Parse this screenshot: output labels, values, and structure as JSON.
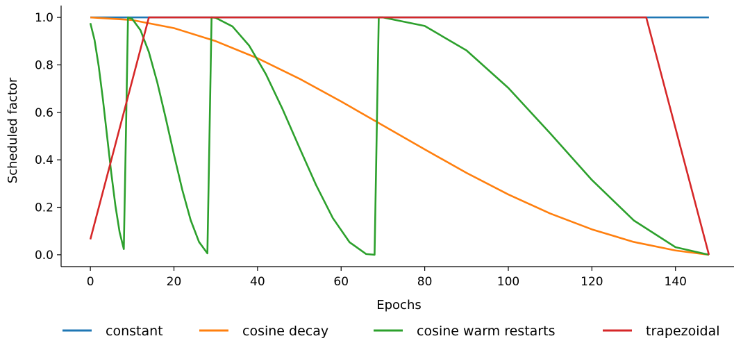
{
  "chart_data": {
    "type": "line",
    "title": "",
    "xlabel": "Epochs",
    "ylabel": "Scheduled factor",
    "xlim": [
      -7,
      154
    ],
    "ylim": [
      -0.05,
      1.05
    ],
    "xticks": [
      0,
      20,
      40,
      60,
      80,
      100,
      120,
      140
    ],
    "yticks": [
      0.0,
      0.2,
      0.4,
      0.6,
      0.8,
      1.0
    ],
    "xtick_labels": [
      "0",
      "20",
      "40",
      "60",
      "80",
      "100",
      "120",
      "140"
    ],
    "ytick_labels": [
      "0.0",
      "0.2",
      "0.4",
      "0.6",
      "0.8",
      "1.0"
    ],
    "grid": false,
    "legend_position": "bottom",
    "series": [
      {
        "name": "constant",
        "color": "#1f77b4",
        "x": [
          0,
          148
        ],
        "y": [
          1.0,
          1.0
        ]
      },
      {
        "name": "cosine decay",
        "color": "#ff7f0e",
        "x": [
          0,
          10,
          20,
          30,
          40,
          50,
          60,
          70,
          80,
          90,
          100,
          110,
          120,
          130,
          140,
          148
        ],
        "y": [
          1.0,
          0.989,
          0.955,
          0.9,
          0.828,
          0.742,
          0.646,
          0.545,
          0.444,
          0.345,
          0.254,
          0.174,
          0.107,
          0.054,
          0.018,
          0.0
        ]
      },
      {
        "name": "cosine warm restarts",
        "color": "#2ca02c",
        "x": [
          0,
          1,
          2,
          3,
          4,
          5,
          6,
          7,
          8,
          8.5,
          9,
          10,
          12,
          14,
          16,
          18,
          20,
          22,
          24,
          26,
          28,
          28.5,
          29,
          30,
          34,
          38,
          42,
          46,
          50,
          54,
          58,
          62,
          66,
          68,
          68.5,
          69,
          70,
          80,
          90,
          100,
          110,
          120,
          130,
          140,
          148
        ],
        "y": [
          0.976,
          0.905,
          0.794,
          0.655,
          0.5,
          0.345,
          0.206,
          0.095,
          0.024,
          0.5,
          1.0,
          0.994,
          0.946,
          0.854,
          0.727,
          0.578,
          0.422,
          0.273,
          0.146,
          0.054,
          0.006,
          0.5,
          1.0,
          0.998,
          0.962,
          0.881,
          0.761,
          0.613,
          0.452,
          0.294,
          0.155,
          0.053,
          0.003,
          0.0,
          0.5,
          1.0,
          1.0,
          0.964,
          0.861,
          0.703,
          0.512,
          0.315,
          0.145,
          0.032,
          0.0
        ]
      },
      {
        "name": "trapezoidal",
        "color": "#d62728",
        "x": [
          0,
          14,
          133,
          148
        ],
        "y": [
          0.065,
          1.0,
          1.0,
          0.0
        ]
      }
    ]
  }
}
